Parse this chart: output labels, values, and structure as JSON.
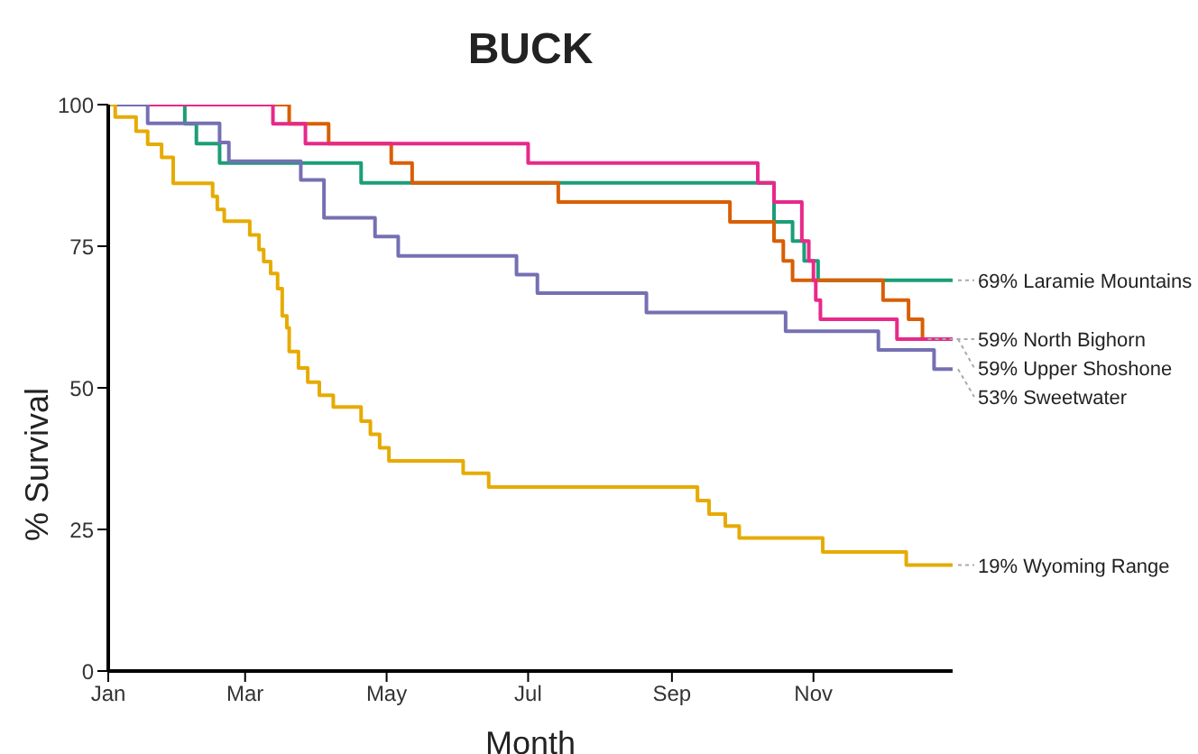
{
  "chart_data": {
    "type": "step",
    "title": "BUCK",
    "xlabel": "Month",
    "ylabel": "% Survival",
    "xlim": [
      "--01-01",
      "--12-31"
    ],
    "xticks": [
      {
        "value": "--01-01",
        "label": "Jan"
      },
      {
        "value": "--03-01",
        "label": "Mar"
      },
      {
        "value": "--05-01",
        "label": "May"
      },
      {
        "value": "--07-01",
        "label": "Jul"
      },
      {
        "value": "--09-01",
        "label": "Sep"
      },
      {
        "value": "--11-01",
        "label": "Nov"
      }
    ],
    "ylim": [
      0,
      100
    ],
    "yticks": [
      0,
      25,
      50,
      75,
      100
    ],
    "grid": false,
    "legend": false,
    "marker": "none",
    "line_style": "solid",
    "series": [
      {
        "name": "69% Laramie Mountains",
        "color": "#1b9e77",
        "x": [
          "--01-01",
          "--02-03",
          "--02-08",
          "--02-18",
          "--04-20",
          "--10-15",
          "--10-23",
          "--10-28",
          "--11-03",
          "--12-31"
        ],
        "values": [
          100,
          96.6,
          93.1,
          89.7,
          86.2,
          79.3,
          75.9,
          72.4,
          69.0,
          69.0
        ]
      },
      {
        "name": "59% North Bighorn",
        "color": "#d95f02",
        "x": [
          "--01-01",
          "--03-20",
          "--04-06",
          "--05-03",
          "--05-12",
          "--07-14",
          "--09-26",
          "--10-15",
          "--10-19",
          "--10-23",
          "--12-01",
          "--12-12",
          "--12-18"
        ],
        "values": [
          100,
          96.6,
          93.1,
          89.7,
          86.2,
          82.8,
          79.3,
          75.9,
          72.4,
          69.0,
          65.5,
          62.1,
          58.6
        ]
      },
      {
        "name": "59% Upper Shoshone",
        "color": "#e7298a",
        "x": [
          "--01-01",
          "--03-13",
          "--03-27",
          "--07-01",
          "--10-08",
          "--10-15",
          "--10-27",
          "--10-30",
          "--11-01",
          "--11-02",
          "--11-04",
          "--12-07",
          "--12-31"
        ],
        "values": [
          100,
          96.6,
          93.1,
          89.7,
          86.2,
          82.8,
          75.9,
          72.4,
          69.0,
          65.5,
          62.1,
          58.6,
          58.6
        ]
      },
      {
        "name": "53% Sweetwater",
        "color": "#7570b3",
        "x": [
          "--01-01",
          "--01-18",
          "--02-18",
          "--02-22",
          "--03-25",
          "--04-04",
          "--04-26",
          "--05-06",
          "--06-26",
          "--07-05",
          "--08-21",
          "--10-20",
          "--11-29",
          "--12-23",
          "--12-31"
        ],
        "values": [
          100,
          96.7,
          93.3,
          90,
          86.7,
          80,
          76.7,
          73.3,
          70,
          66.7,
          63.3,
          60,
          56.7,
          53.3,
          53.3
        ]
      },
      {
        "name": "19% Wyoming Range",
        "color": "#e6ab02",
        "x": [
          "--01-01",
          "--01-04",
          "--01-13",
          "--01-18",
          "--01-24",
          "--01-29",
          "--02-15",
          "--02-17",
          "--02-20",
          "--03-03",
          "--03-07",
          "--03-09",
          "--03-12",
          "--03-15",
          "--03-17",
          "--03-19",
          "--03-20",
          "--03-24",
          "--03-28",
          "--04-02",
          "--04-08",
          "--04-20",
          "--04-24",
          "--04-28",
          "--05-02",
          "--06-03",
          "--06-14",
          "--09-12",
          "--09-17",
          "--09-24",
          "--09-30",
          "--11-05",
          "--12-11",
          "--12-31"
        ],
        "values": [
          100,
          97.8,
          95.3,
          93,
          90.7,
          86.1,
          83.8,
          81.5,
          79.4,
          77,
          74.4,
          72.3,
          70.2,
          67.5,
          62.7,
          60.6,
          56.4,
          53.5,
          51,
          48.7,
          46.6,
          44.1,
          41.8,
          39.4,
          37.1,
          34.9,
          32.5,
          30.1,
          27.7,
          25.6,
          23.5,
          21,
          18.7,
          18.7
        ]
      }
    ]
  }
}
